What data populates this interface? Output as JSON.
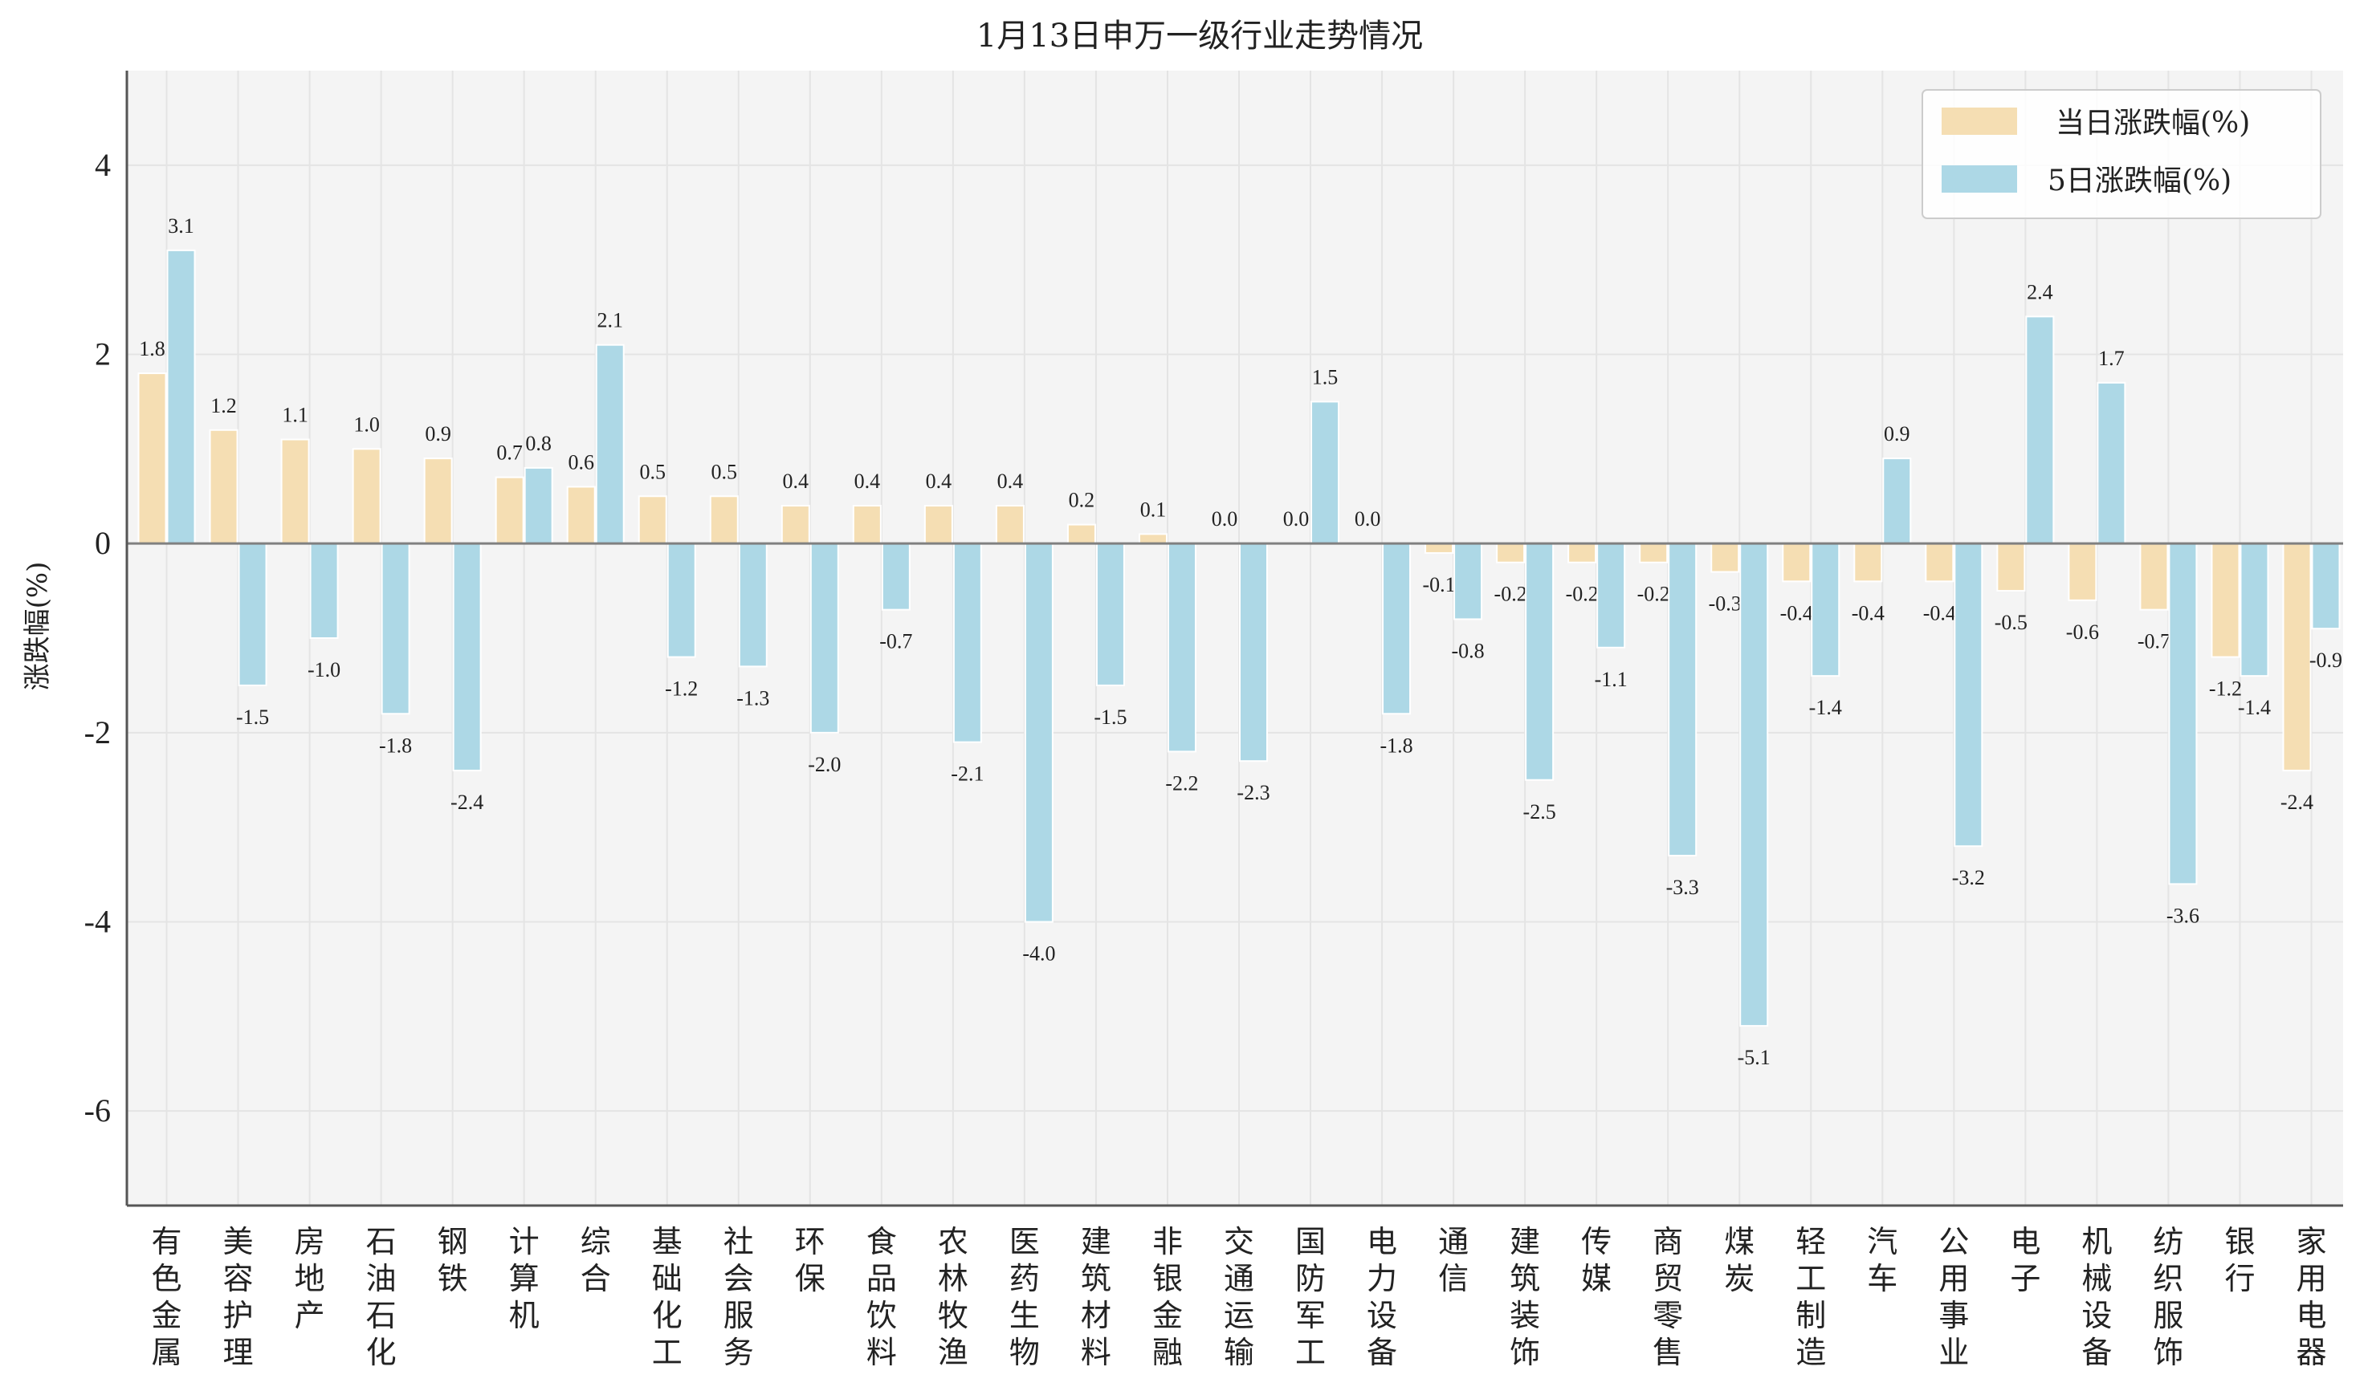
{
  "colors": {
    "series_a": "#f5deb3",
    "series_b": "#add8e6",
    "plot_bg": "#f4f4f4",
    "grid": "#e4e4e4",
    "zero_line": "#808080",
    "axis": "#555555"
  },
  "chart_data": {
    "type": "bar",
    "title": "1月13日申万一级行业走势情况",
    "xlabel": "",
    "ylabel": "涨跌幅(%)",
    "ylim": [
      -7,
      5
    ],
    "yticks": [
      4,
      2,
      0,
      -2,
      -4,
      -6
    ],
    "grid": true,
    "legend_position": "top-right",
    "categories": [
      "有色金属",
      "美容护理",
      "房地产",
      "石油石化",
      "钢铁",
      "计算机",
      "综合",
      "基础化工",
      "社会服务",
      "环保",
      "食品饮料",
      "农林牧渔",
      "医药生物",
      "建筑材料",
      "非银金融",
      "交通运输",
      "国防军工",
      "电力设备",
      "通信",
      "建筑装饰",
      "传媒",
      "商贸零售",
      "煤炭",
      "轻工制造",
      "汽车",
      "公用事业",
      "电子",
      "机械设备",
      "纺织服饰",
      "银行",
      "家用电器"
    ],
    "series": [
      {
        "name": "当日涨跌幅(%)",
        "values": [
          1.8,
          1.2,
          1.1,
          1.0,
          0.9,
          0.7,
          0.6,
          0.5,
          0.5,
          0.4,
          0.4,
          0.4,
          0.4,
          0.2,
          0.1,
          0.0,
          0.0,
          0.0,
          -0.1,
          -0.2,
          -0.2,
          -0.2,
          -0.3,
          -0.4,
          -0.4,
          -0.4,
          -0.5,
          -0.6,
          -0.7,
          -1.2,
          -2.4
        ],
        "labels": [
          "1.8",
          "1.2",
          "1.1",
          "1.0",
          "0.9",
          "0.7",
          "0.6",
          "0.5",
          "0.5",
          "0.4",
          "0.4",
          "0.4",
          "0.4",
          "0.2",
          "0.1",
          "0.0",
          "0.0",
          "0.0",
          "-0.1",
          "-0.2",
          "-0.2",
          "-0.2",
          "-0.3",
          "-0.4",
          "-0.4",
          "-0.4",
          "-0.5",
          "-0.6",
          "-0.7",
          "-1.2",
          "-2.4"
        ]
      },
      {
        "name": "5日涨跌幅(%)",
        "values": [
          3.1,
          -1.5,
          -1.0,
          -1.8,
          -2.4,
          0.8,
          2.1,
          -1.2,
          -1.3,
          -2.0,
          -0.7,
          -2.1,
          -4.0,
          -1.5,
          -2.2,
          -2.3,
          1.5,
          -1.8,
          -0.8,
          -2.5,
          -1.1,
          -3.3,
          -5.1,
          -1.4,
          0.9,
          -3.2,
          2.4,
          1.7,
          -3.6,
          -1.4,
          -0.9
        ],
        "labels": [
          "3.1",
          "-1.5",
          "-1.0",
          "-1.8",
          "-2.4",
          "0.8",
          "2.1",
          "-1.2",
          "-1.3",
          "-2.0",
          "-0.7",
          "-2.1",
          "-4.0",
          "-1.5",
          "-2.2",
          "-2.3",
          "1.5",
          "-1.8",
          "-0.8",
          "-2.5",
          "-1.1",
          "-3.3",
          "-5.1",
          "-1.4",
          "0.9",
          "-3.2",
          "2.4",
          "1.7",
          "-3.6",
          "-1.4",
          "-0.9"
        ]
      }
    ]
  }
}
